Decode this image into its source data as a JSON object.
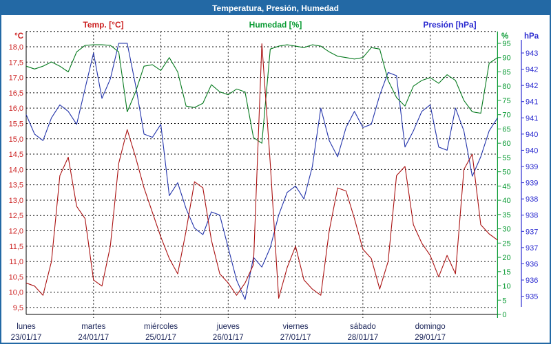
{
  "window": {
    "title": "Temperatura, Presión, Humedad"
  },
  "chart_data": {
    "type": "line",
    "title": "Temperatura, Presión, Humedad",
    "grid": true,
    "legend_position": "top",
    "x_axis": {
      "hours_per_point": 3,
      "days": [
        {
          "name": "lunes",
          "date": "23/01/17"
        },
        {
          "name": "martes",
          "date": "24/01/17"
        },
        {
          "name": "miércoles",
          "date": "25/01/17"
        },
        {
          "name": "jueves",
          "date": "26/01/17"
        },
        {
          "name": "viernes",
          "date": "27/01/17"
        },
        {
          "name": "sábado",
          "date": "28/01/17"
        },
        {
          "name": "domingo",
          "date": "29/01/17"
        }
      ]
    },
    "axes": {
      "temp": {
        "unit": "°C",
        "side": "left",
        "color": "#cc2222",
        "min": 9.5,
        "max": 18.5,
        "step": 0.5,
        "tick_labels": [
          "18,0",
          "17,5",
          "17,0",
          "16,5",
          "16,0",
          "15,5",
          "15,0",
          "14,5",
          "14,0",
          "13,5",
          "13,0",
          "12,5",
          "12,0",
          "11,5",
          "11,0",
          "10,5",
          "10,0",
          "9,5"
        ]
      },
      "hum": {
        "unit": "%",
        "side": "right",
        "color": "#089a32",
        "min": 0,
        "max": 95,
        "step": 5,
        "tick_labels": [
          "95",
          "90",
          "85",
          "80",
          "75",
          "70",
          "65",
          "60",
          "55",
          "50",
          "45",
          "40",
          "35",
          "30",
          "25",
          "20",
          "15",
          "10",
          "5",
          "0"
        ]
      },
      "pres": {
        "unit": "hPa",
        "side": "right-outer",
        "color": "#2a2ad0",
        "top_value": 943,
        "step_per_label": 0.5,
        "tick_labels": [
          "943",
          "942",
          "942",
          "941",
          "941",
          "940",
          "940",
          "939",
          "939",
          "938",
          "938",
          "937",
          "937",
          "936",
          "936",
          "935"
        ]
      }
    },
    "series": [
      {
        "name": "Temp. [°C]",
        "axis": "temp",
        "color": "#aa1111",
        "values": [
          10.3,
          10.2,
          9.9,
          11.0,
          13.8,
          14.4,
          12.8,
          12.4,
          10.4,
          10.2,
          11.5,
          14.2,
          15.3,
          14.4,
          13.4,
          12.6,
          11.8,
          11.1,
          10.6,
          12.0,
          13.6,
          13.4,
          11.7,
          10.6,
          10.3,
          9.9,
          10.3,
          10.9,
          18.1,
          14.2,
          9.8,
          10.8,
          11.5,
          10.4,
          10.1,
          9.9,
          12.0,
          13.4,
          13.3,
          12.4,
          11.4,
          11.1,
          10.1,
          11.0,
          13.8,
          14.1,
          12.2,
          11.6,
          11.2,
          10.5,
          11.2,
          10.6,
          14.0,
          14.5,
          12.2,
          11.9,
          11.7
        ]
      },
      {
        "name": "Humedad [%]",
        "axis": "hum",
        "color": "#067a1e",
        "values": [
          87,
          86,
          87,
          88.5,
          87,
          85,
          92,
          94.3,
          94.5,
          94.5,
          94.3,
          92,
          71,
          78,
          87,
          87.5,
          85.5,
          90,
          85,
          73,
          72.5,
          74,
          80.5,
          78,
          77,
          79,
          78,
          62,
          60,
          93,
          94,
          94.5,
          94,
          93.5,
          94.5,
          94,
          92,
          90.5,
          90,
          89.5,
          90,
          93.5,
          93,
          82,
          76,
          73,
          80,
          82,
          83,
          81,
          84,
          82,
          75,
          71,
          70.5,
          88,
          90
        ]
      },
      {
        "name": "Presión [hPa]",
        "axis": "pres",
        "color": "#2233aa",
        "values": [
          941.1,
          940.5,
          940.3,
          941.0,
          941.4,
          941.2,
          940.8,
          941.9,
          943.0,
          941.6,
          942.2,
          943.3,
          943.3,
          942.0,
          940.5,
          940.4,
          940.8,
          938.6,
          939.0,
          938.2,
          937.6,
          937.4,
          938.1,
          938.0,
          937.0,
          936.0,
          935.4,
          936.7,
          936.4,
          937.0,
          938.0,
          938.7,
          938.9,
          938.5,
          939.5,
          941.3,
          940.3,
          939.8,
          940.7,
          941.2,
          940.7,
          940.8,
          941.7,
          942.4,
          942.3,
          940.1,
          940.6,
          941.2,
          941.4,
          940.1,
          940.0,
          941.3,
          940.6,
          939.2,
          939.8,
          940.6,
          941.0
        ]
      }
    ]
  }
}
